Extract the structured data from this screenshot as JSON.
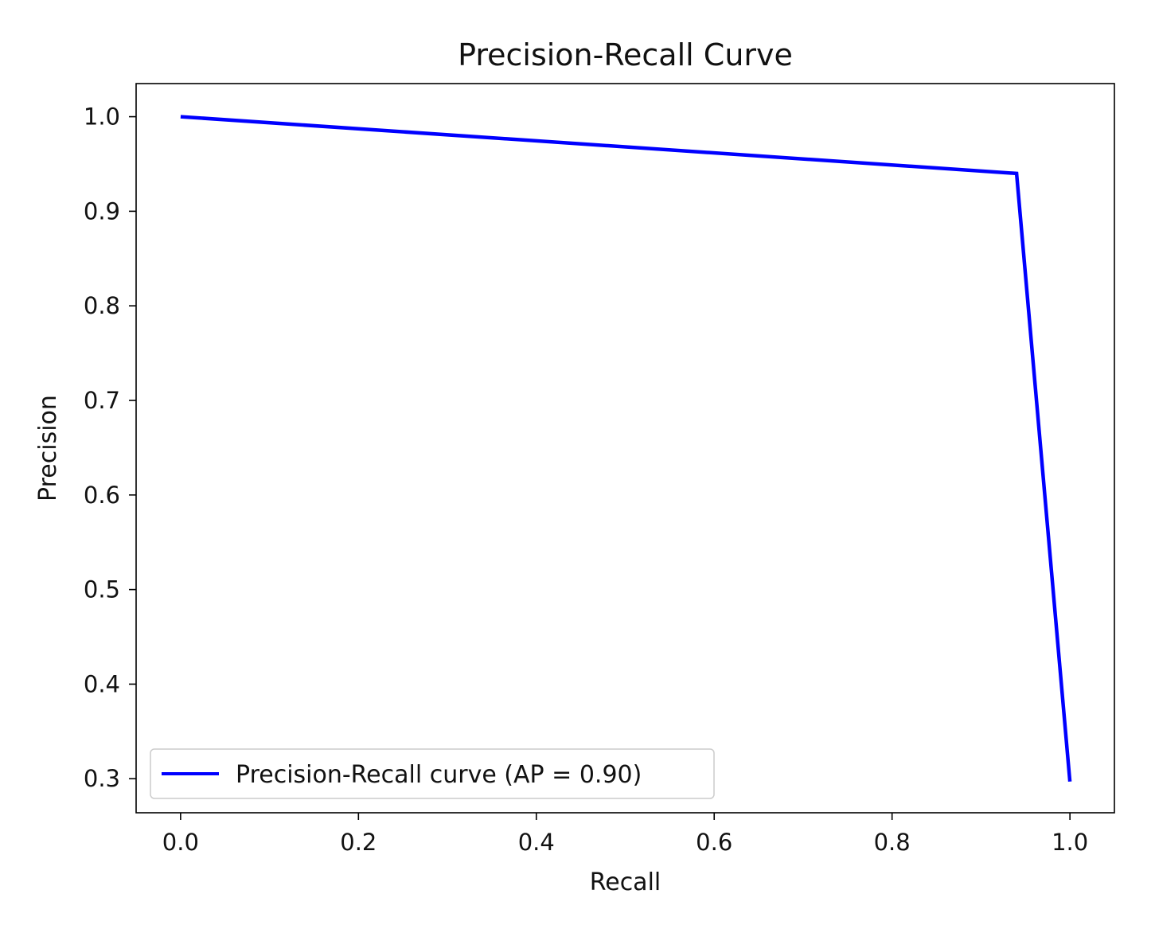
{
  "chart_data": {
    "type": "line",
    "title": "Precision-Recall Curve",
    "xlabel": "Recall",
    "ylabel": "Precision",
    "xlim": [
      -0.05,
      1.05
    ],
    "ylim": [
      0.264,
      1.035
    ],
    "xticks": [
      0.0,
      0.2,
      0.4,
      0.6,
      0.8,
      1.0
    ],
    "xtick_labels": [
      "0.0",
      "0.2",
      "0.4",
      "0.6",
      "0.8",
      "1.0"
    ],
    "yticks": [
      0.3,
      0.4,
      0.5,
      0.6,
      0.7,
      0.8,
      0.9,
      1.0
    ],
    "ytick_labels": [
      "0.3",
      "0.4",
      "0.5",
      "0.6",
      "0.7",
      "0.8",
      "0.9",
      "1.0"
    ],
    "grid": false,
    "legend": {
      "position": "lower-left"
    },
    "series": [
      {
        "name": "Precision-Recall curve (AP = 0.90)",
        "color": "#0000ff",
        "x": [
          0.0,
          0.94,
          1.0
        ],
        "y": [
          1.0,
          0.94,
          0.297
        ]
      }
    ]
  }
}
